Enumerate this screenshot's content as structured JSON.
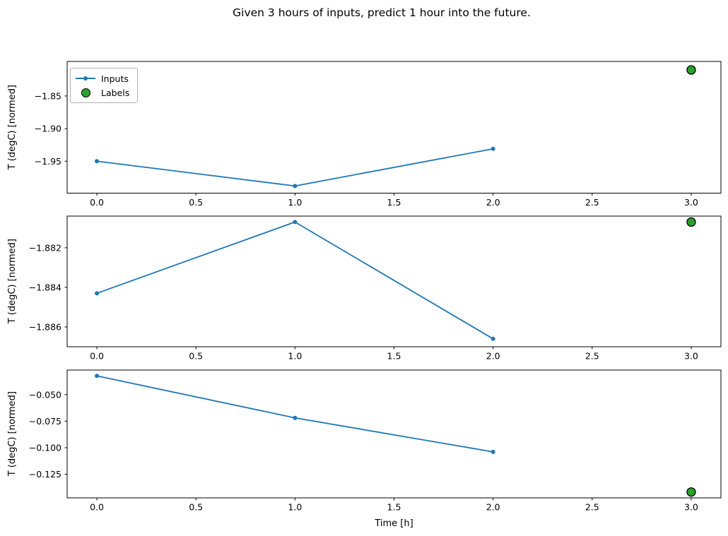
{
  "figure": {
    "title": "Given 3 hours of inputs, predict 1 hour into the future.",
    "xlabel": "Time [h]",
    "ylabel": "T (degC) [normed]",
    "legend": {
      "inputs": "Inputs",
      "labels": "Labels",
      "position": "upper left"
    },
    "colors": {
      "inputs_line": "#1f77b4",
      "labels_marker": "#2ca02c",
      "labels_marker_edge": "#000000",
      "axis": "#000000",
      "text": "#000000",
      "legend_border": "#b3b3b3",
      "background": "#ffffff"
    }
  },
  "chart_data": [
    {
      "type": "line",
      "panel": "top",
      "ylabel": "T (degC) [normed]",
      "series": [
        {
          "name": "Inputs",
          "x": [
            0,
            1,
            2
          ],
          "values": [
            -1.95,
            -1.988,
            -1.931
          ]
        }
      ],
      "labels_point": {
        "name": "Labels",
        "x": 3,
        "value": -1.81
      },
      "xticks": [
        0.0,
        0.5,
        1.0,
        1.5,
        2.0,
        2.5,
        3.0
      ],
      "xtick_labels": [
        "0.0",
        "0.5",
        "1.0",
        "1.5",
        "2.0",
        "2.5",
        "3.0"
      ],
      "yticks": [
        -1.85,
        -1.9,
        -1.95
      ],
      "ytick_labels": [
        "−1.85",
        "−1.90",
        "−1.95"
      ],
      "xlim": [
        -0.15,
        3.15
      ],
      "ylim": [
        -1.999,
        -1.797
      ],
      "grid": false,
      "legend": true,
      "axes_rect": [
        95,
        87,
        925,
        186.5
      ]
    },
    {
      "type": "line",
      "panel": "middle",
      "ylabel": "T (degC) [normed]",
      "series": [
        {
          "name": "Inputs",
          "x": [
            0,
            1,
            2
          ],
          "values": [
            -1.8843,
            -1.8807,
            -1.8866
          ]
        }
      ],
      "labels_point": {
        "name": "Labels",
        "x": 3,
        "value": -1.8807
      },
      "xticks": [
        0.0,
        0.5,
        1.0,
        1.5,
        2.0,
        2.5,
        3.0
      ],
      "xtick_labels": [
        "0.0",
        "0.5",
        "1.0",
        "1.5",
        "2.0",
        "2.5",
        "3.0"
      ],
      "yticks": [
        -1.882,
        -1.884,
        -1.886
      ],
      "ytick_labels": [
        "−1.882",
        "−1.884",
        "−1.886"
      ],
      "xlim": [
        -0.15,
        3.15
      ],
      "ylim": [
        -1.887,
        -1.8804
      ],
      "grid": false,
      "legend": false,
      "axes_rect": [
        95,
        306,
        925,
        185
      ]
    },
    {
      "type": "line",
      "panel": "bottom",
      "xlabel": "Time [h]",
      "ylabel": "T (degC) [normed]",
      "series": [
        {
          "name": "Inputs",
          "x": [
            0,
            1,
            2
          ],
          "values": [
            -0.0324,
            -0.0719,
            -0.1039
          ]
        }
      ],
      "labels_point": {
        "name": "Labels",
        "x": 3,
        "value": -0.1417
      },
      "xticks": [
        0.0,
        0.5,
        1.0,
        1.5,
        2.0,
        2.5,
        3.0
      ],
      "xtick_labels": [
        "0.0",
        "0.5",
        "1.0",
        "1.5",
        "2.0",
        "2.5",
        "3.0"
      ],
      "yticks": [
        -0.05,
        -0.075,
        -0.1,
        -0.125
      ],
      "ytick_labels": [
        "−0.050",
        "−0.075",
        "−0.100",
        "−0.125"
      ],
      "xlim": [
        -0.15,
        3.15
      ],
      "ylim": [
        -0.1472,
        -0.0269
      ],
      "grid": false,
      "legend": false,
      "axes_rect": [
        95,
        524,
        925,
        181
      ]
    }
  ]
}
